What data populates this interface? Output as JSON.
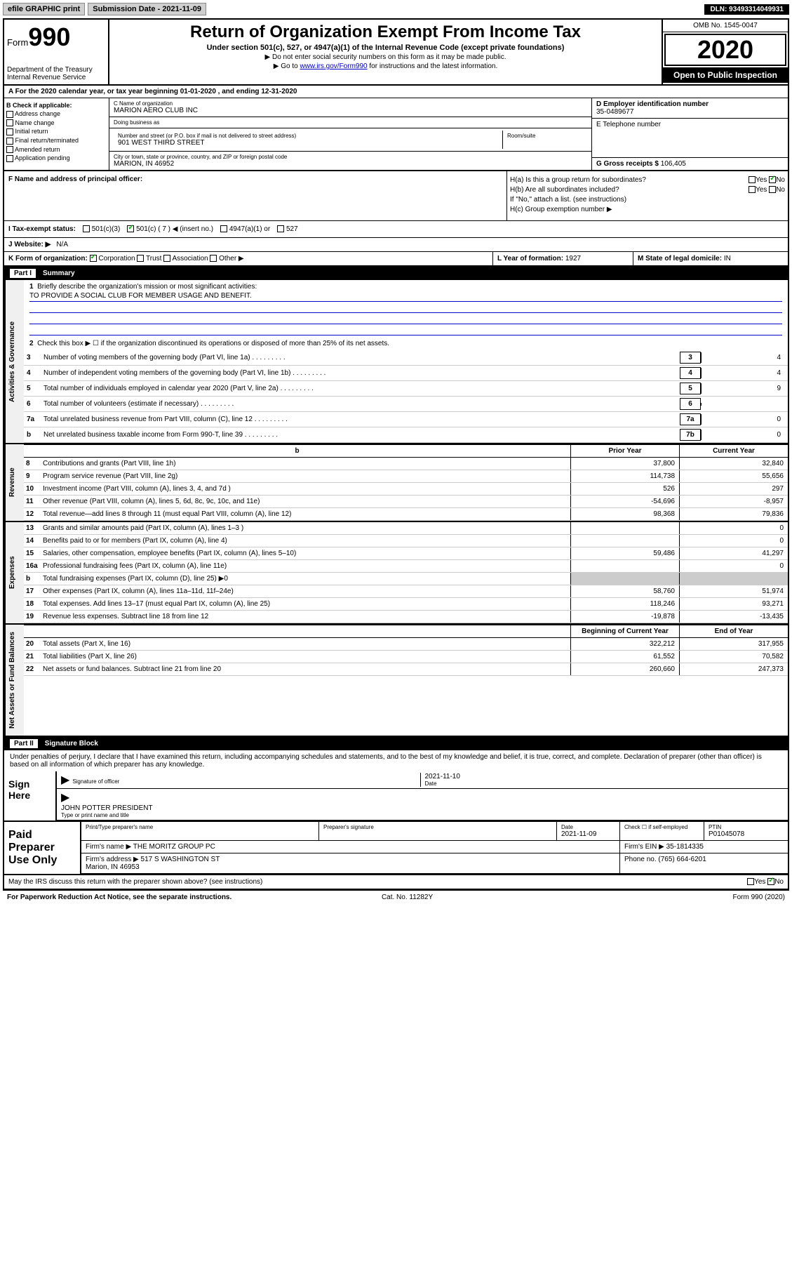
{
  "topbar": {
    "efile": "efile GRAPHIC print",
    "submission_label": "Submission Date - 2021-11-09",
    "dln": "DLN: 93493314049931"
  },
  "header": {
    "form_label": "Form",
    "form_num": "990",
    "dept": "Department of the Treasury\nInternal Revenue Service",
    "title": "Return of Organization Exempt From Income Tax",
    "subtitle": "Under section 501(c), 527, or 4947(a)(1) of the Internal Revenue Code (except private foundations)",
    "note1": "▶ Do not enter social security numbers on this form as it may be made public.",
    "note2_pre": "▶ Go to ",
    "note2_link": "www.irs.gov/Form990",
    "note2_post": " for instructions and the latest information.",
    "omb": "OMB No. 1545-0047",
    "year": "2020",
    "open_public": "Open to Public Inspection"
  },
  "row_a": "A For the 2020 calendar year, or tax year beginning 01-01-2020   , and ending 12-31-2020",
  "box_b": {
    "header": "B Check if applicable:",
    "opts": [
      "Address change",
      "Name change",
      "Initial return",
      "Final return/terminated",
      "Amended return",
      "Application pending"
    ]
  },
  "box_c": {
    "name_label": "C Name of organization",
    "name": "MARION AERO CLUB INC",
    "dba_label": "Doing business as",
    "dba": "",
    "addr_label": "Number and street (or P.O. box if mail is not delivered to street address)",
    "room_label": "Room/suite",
    "addr": "901 WEST THIRD STREET",
    "city_label": "City or town, state or province, country, and ZIP or foreign postal code",
    "city": "MARION, IN  46952"
  },
  "box_d": {
    "label": "D Employer identification number",
    "value": "35-0489677"
  },
  "box_e": {
    "label": "E Telephone number",
    "value": ""
  },
  "box_g": {
    "label": "G Gross receipts $",
    "value": "106,405"
  },
  "box_f": "F  Name and address of principal officer:",
  "box_h": {
    "ha": "H(a)  Is this a group return for subordinates?",
    "hb": "H(b)  Are all subordinates included?",
    "hb_note": "If \"No,\" attach a list. (see instructions)",
    "hc": "H(c)  Group exemption number ▶",
    "yes": "Yes",
    "no": "No"
  },
  "tax_status": {
    "label": "I   Tax-exempt status:",
    "opts": [
      "501(c)(3)",
      "501(c) ( 7 ) ◀ (insert no.)",
      "4947(a)(1) or",
      "527"
    ],
    "checked_idx": 1
  },
  "website": {
    "label": "J   Website: ▶",
    "value": "N/A"
  },
  "box_k": {
    "label": "K Form of organization:",
    "opts": [
      "Corporation",
      "Trust",
      "Association",
      "Other ▶"
    ],
    "checked_idx": 0
  },
  "box_l": {
    "label": "L Year of formation:",
    "value": "1927"
  },
  "box_m": {
    "label": "M State of legal domicile:",
    "value": "IN"
  },
  "part1": {
    "num": "Part I",
    "title": "Summary"
  },
  "part2": {
    "num": "Part II",
    "title": "Signature Block"
  },
  "gov_tab": "Activities & Governance",
  "rev_tab": "Revenue",
  "exp_tab": "Expenses",
  "net_tab": "Net Assets or Fund Balances",
  "gov": {
    "l1": "Briefly describe the organization's mission or most significant activities:",
    "mission": "TO PROVIDE A SOCIAL CLUB FOR MEMBER USAGE AND BENEFIT.",
    "l2": "Check this box ▶ ☐  if the organization discontinued its operations or disposed of more than 25% of its net assets.",
    "lines": [
      {
        "n": "3",
        "d": "Number of voting members of the governing body (Part VI, line 1a)",
        "box": "3",
        "v": "4"
      },
      {
        "n": "4",
        "d": "Number of independent voting members of the governing body (Part VI, line 1b)",
        "box": "4",
        "v": "4"
      },
      {
        "n": "5",
        "d": "Total number of individuals employed in calendar year 2020 (Part V, line 2a)",
        "box": "5",
        "v": "9"
      },
      {
        "n": "6",
        "d": "Total number of volunteers (estimate if necessary)",
        "box": "6",
        "v": ""
      },
      {
        "n": "7a",
        "d": "Total unrelated business revenue from Part VIII, column (C), line 12",
        "box": "7a",
        "v": "0"
      },
      {
        "n": "b",
        "d": "Net unrelated business taxable income from Form 990-T, line 39",
        "box": "7b",
        "v": "0"
      }
    ]
  },
  "rev_exp_hdr": {
    "prior": "Prior Year",
    "current": "Current Year"
  },
  "revenue": [
    {
      "n": "8",
      "d": "Contributions and grants (Part VIII, line 1h)",
      "p": "37,800",
      "c": "32,840"
    },
    {
      "n": "9",
      "d": "Program service revenue (Part VIII, line 2g)",
      "p": "114,738",
      "c": "55,656"
    },
    {
      "n": "10",
      "d": "Investment income (Part VIII, column (A), lines 3, 4, and 7d )",
      "p": "526",
      "c": "297"
    },
    {
      "n": "11",
      "d": "Other revenue (Part VIII, column (A), lines 5, 6d, 8c, 9c, 10c, and 11e)",
      "p": "-54,696",
      "c": "-8,957"
    },
    {
      "n": "12",
      "d": "Total revenue—add lines 8 through 11 (must equal Part VIII, column (A), line 12)",
      "p": "98,368",
      "c": "79,836"
    }
  ],
  "expenses": [
    {
      "n": "13",
      "d": "Grants and similar amounts paid (Part IX, column (A), lines 1–3 )",
      "p": "",
      "c": "0"
    },
    {
      "n": "14",
      "d": "Benefits paid to or for members (Part IX, column (A), line 4)",
      "p": "",
      "c": "0"
    },
    {
      "n": "15",
      "d": "Salaries, other compensation, employee benefits (Part IX, column (A), lines 5–10)",
      "p": "59,486",
      "c": "41,297"
    },
    {
      "n": "16a",
      "d": "Professional fundraising fees (Part IX, column (A), line 11e)",
      "p": "",
      "c": "0"
    },
    {
      "n": "b",
      "d": "Total fundraising expenses (Part IX, column (D), line 25) ▶0",
      "p": "SHADED",
      "c": "SHADED"
    },
    {
      "n": "17",
      "d": "Other expenses (Part IX, column (A), lines 11a–11d, 11f–24e)",
      "p": "58,760",
      "c": "51,974"
    },
    {
      "n": "18",
      "d": "Total expenses. Add lines 13–17 (must equal Part IX, column (A), line 25)",
      "p": "118,246",
      "c": "93,271"
    },
    {
      "n": "19",
      "d": "Revenue less expenses. Subtract line 18 from line 12",
      "p": "-19,878",
      "c": "-13,435"
    }
  ],
  "net_hdr": {
    "begin": "Beginning of Current Year",
    "end": "End of Year"
  },
  "net": [
    {
      "n": "20",
      "d": "Total assets (Part X, line 16)",
      "p": "322,212",
      "c": "317,955"
    },
    {
      "n": "21",
      "d": "Total liabilities (Part X, line 26)",
      "p": "61,552",
      "c": "70,582"
    },
    {
      "n": "22",
      "d": "Net assets or fund balances. Subtract line 21 from line 20",
      "p": "260,660",
      "c": "247,373"
    }
  ],
  "sig": {
    "declaration": "Under penalties of perjury, I declare that I have examined this return, including accompanying schedules and statements, and to the best of my knowledge and belief, it is true, correct, and complete. Declaration of preparer (other than officer) is based on all information of which preparer has any knowledge.",
    "sign_here": "Sign Here",
    "sig_officer": "Signature of officer",
    "date_label": "Date",
    "date": "2021-11-10",
    "name_title": "JOHN POTTER  PRESIDENT",
    "type_name": "Type or print name and title"
  },
  "prep": {
    "label": "Paid Preparer Use Only",
    "print_name_label": "Print/Type preparer's name",
    "sig_label": "Preparer's signature",
    "date_label": "Date",
    "date": "2021-11-09",
    "check_label": "Check ☐ if self-employed",
    "ptin_label": "PTIN",
    "ptin": "P01045078",
    "firm_name_label": "Firm's name    ▶",
    "firm_name": "THE MORITZ GROUP PC",
    "firm_ein_label": "Firm's EIN ▶",
    "firm_ein": "35-1814335",
    "firm_addr_label": "Firm's address ▶",
    "firm_addr": "517 S WASHINGTON ST",
    "firm_city": "Marion, IN  46953",
    "phone_label": "Phone no.",
    "phone": "(765) 664-6201",
    "discuss": "May the IRS discuss this return with the preparer shown above? (see instructions)",
    "yes": "Yes",
    "no": "No"
  },
  "footer": {
    "left": "For Paperwork Reduction Act Notice, see the separate instructions.",
    "mid": "Cat. No. 11282Y",
    "right": "Form 990 (2020)"
  }
}
